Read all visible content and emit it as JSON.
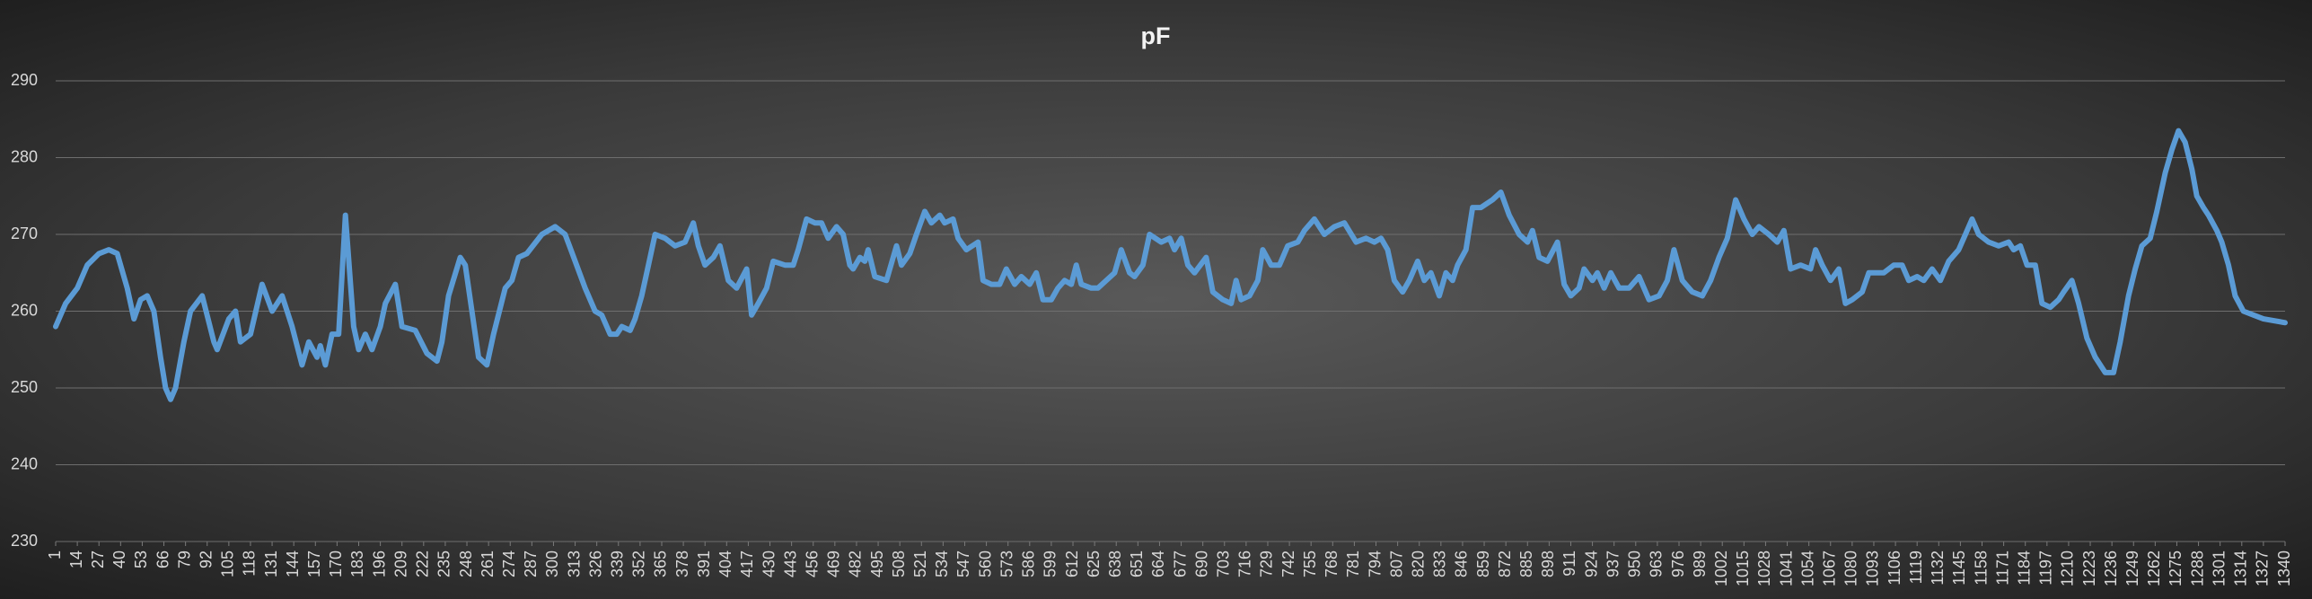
{
  "chart_data": {
    "type": "line",
    "title": "pF",
    "color": "#5b9bd5",
    "grid": true,
    "xlim": [
      1,
      1340
    ],
    "xticks": [
      1,
      14,
      27,
      40,
      53,
      66,
      79,
      92,
      105,
      118,
      131,
      144,
      157,
      170,
      183,
      196,
      209,
      222,
      235,
      248,
      261,
      274,
      287,
      300,
      313,
      326,
      339,
      352,
      365,
      378,
      391,
      404,
      417,
      430,
      443,
      456,
      469,
      482,
      495,
      508,
      521,
      534,
      547,
      560,
      573,
      586,
      599,
      612,
      625,
      638,
      651,
      664,
      677,
      690,
      703,
      716,
      729,
      742,
      755,
      768,
      781,
      794,
      807,
      820,
      833,
      846,
      859,
      872,
      885,
      898,
      911,
      924,
      937,
      950,
      963,
      976,
      989,
      1002,
      1015,
      1028,
      1041,
      1054,
      1067,
      1080,
      1093,
      1106,
      1119,
      1132,
      1145,
      1158,
      1171,
      1184,
      1197,
      1210,
      1223,
      1236,
      1249,
      1262,
      1275,
      1288,
      1301,
      1314,
      1327,
      1340
    ],
    "ylim": [
      230,
      290
    ],
    "yticks": [
      230,
      240,
      250,
      260,
      270,
      280,
      290
    ],
    "x": [
      1,
      7,
      14,
      20,
      27,
      33,
      38,
      44,
      48,
      52,
      56,
      60,
      64,
      67,
      70,
      73,
      78,
      82,
      89,
      96,
      98,
      105,
      109,
      112,
      118,
      125,
      131,
      137,
      143,
      149,
      153,
      158,
      160,
      163,
      167,
      171,
      175,
      180,
      183,
      187,
      191,
      196,
      199,
      205,
      209,
      217,
      224,
      230,
      233,
      237,
      244,
      247,
      251,
      255,
      260,
      264,
      271,
      275,
      279,
      284,
      293,
      301,
      307,
      313,
      319,
      325,
      329,
      334,
      338,
      341,
      346,
      349,
      353,
      357,
      361,
      367,
      373,
      379,
      384,
      387,
      391,
      396,
      400,
      405,
      410,
      416,
      419,
      423,
      428,
      432,
      439,
      444,
      447,
      452,
      457,
      461,
      465,
      470,
      474,
      478,
      480,
      484,
      487,
      489,
      493,
      500,
      506,
      509,
      514,
      518,
      523,
      527,
      532,
      535,
      540,
      543,
      548,
      555,
      558,
      563,
      568,
      572,
      577,
      581,
      586,
      590,
      594,
      599,
      603,
      607,
      611,
      614,
      617,
      623,
      627,
      632,
      637,
      641,
      646,
      649,
      654,
      658,
      665,
      670,
      673,
      677,
      681,
      685,
      692,
      696,
      702,
      707,
      710,
      713,
      718,
      723,
      726,
      731,
      736,
      741,
      747,
      751,
      757,
      763,
      769,
      775,
      782,
      788,
      793,
      797,
      801,
      805,
      810,
      814,
      819,
      823,
      827,
      832,
      836,
      840,
      843,
      848,
      852,
      857,
      864,
      869,
      874,
      880,
      885,
      888,
      892,
      897,
      903,
      907,
      911,
      916,
      919,
      924,
      927,
      931,
      935,
      940,
      946,
      952,
      958,
      964,
      969,
      973,
      978,
      984,
      990,
      995,
      1000,
      1005,
      1010,
      1015,
      1020,
      1024,
      1030,
      1035,
      1039,
      1043,
      1049,
      1055,
      1058,
      1062,
      1067,
      1072,
      1076,
      1080,
      1086,
      1090,
      1099,
      1105,
      1110,
      1114,
      1119,
      1123,
      1128,
      1133,
      1138,
      1144,
      1148,
      1152,
      1156,
      1162,
      1168,
      1174,
      1177,
      1181,
      1185,
      1190,
      1194,
      1199,
      1204,
      1207,
      1212,
      1216,
      1221,
      1226,
      1232,
      1237,
      1241,
      1246,
      1250,
      1254,
      1259,
      1263,
      1268,
      1272,
      1276,
      1280,
      1284,
      1287,
      1291,
      1294,
      1299,
      1302,
      1306,
      1310,
      1315,
      1321,
      1327,
      1340
    ],
    "values": [
      258,
      261,
      263,
      266,
      267.5,
      268,
      267.5,
      263,
      259,
      261.5,
      262,
      260,
      254,
      250,
      248.5,
      250,
      256,
      260,
      262,
      256,
      255,
      259,
      260,
      256,
      257,
      263.5,
      260,
      262,
      258,
      253,
      256,
      254,
      255.5,
      253,
      257,
      257,
      272.5,
      258,
      255,
      257,
      255,
      258,
      261,
      263.5,
      258,
      257.5,
      254.5,
      253.5,
      256,
      262,
      267,
      266,
      260,
      254,
      253,
      257,
      263,
      264,
      267,
      267.5,
      270,
      271,
      270,
      266.5,
      263,
      260,
      259.5,
      257,
      257,
      258,
      257.5,
      259,
      262,
      266,
      270,
      269.5,
      268.5,
      269,
      271.5,
      268.5,
      266,
      267,
      268.5,
      264,
      263,
      265.5,
      259.5,
      261,
      263,
      266.5,
      266,
      266,
      268,
      272,
      271.5,
      271.5,
      269.5,
      271,
      270,
      266,
      265.5,
      267,
      266.5,
      268,
      264.5,
      264,
      268.5,
      266,
      267.5,
      270,
      273,
      271.5,
      272.5,
      271.5,
      272,
      269.5,
      268,
      269,
      264,
      263.5,
      263.5,
      265.5,
      263.5,
      264.5,
      263.5,
      265,
      261.5,
      261.5,
      263,
      264,
      263.5,
      266,
      263.5,
      263,
      263,
      264,
      265,
      268,
      265,
      264.5,
      266,
      270,
      269,
      269.5,
      268,
      269.5,
      266,
      265,
      267,
      262.5,
      261.5,
      261,
      264,
      261.5,
      262,
      264,
      268,
      266,
      266,
      268.5,
      269,
      270.5,
      272,
      270,
      271,
      271.5,
      269,
      269.5,
      269,
      269.5,
      268,
      264,
      262.5,
      264,
      266.5,
      264,
      265,
      262,
      265,
      264,
      266,
      268,
      273.5,
      273.5,
      274.5,
      275.5,
      272.5,
      270,
      269,
      270.5,
      267,
      266.5,
      269,
      263.5,
      262,
      263,
      265.5,
      264,
      265,
      263,
      265,
      263,
      263,
      264.5,
      261.5,
      262,
      264,
      268,
      264,
      262.5,
      262,
      264,
      267,
      269.5,
      274.5,
      272,
      270,
      271,
      270,
      269,
      270.5,
      265.5,
      266,
      265.5,
      268,
      266,
      264,
      265.5,
      261,
      261.5,
      262.5,
      265,
      265,
      266,
      266,
      264,
      264.5,
      264,
      265.5,
      264,
      266.5,
      268,
      270,
      272,
      270,
      269,
      268.5,
      269,
      268,
      268.5,
      266,
      266,
      261,
      260.5,
      261.5,
      262.5,
      264,
      261,
      256.5,
      254,
      252,
      252,
      256,
      262,
      265.5,
      268.5,
      269.5,
      273,
      278,
      281,
      283.5,
      282,
      278.5,
      275,
      273.5,
      272.5,
      270.5,
      269,
      266,
      262,
      260,
      259.5,
      259,
      258.5
    ]
  }
}
